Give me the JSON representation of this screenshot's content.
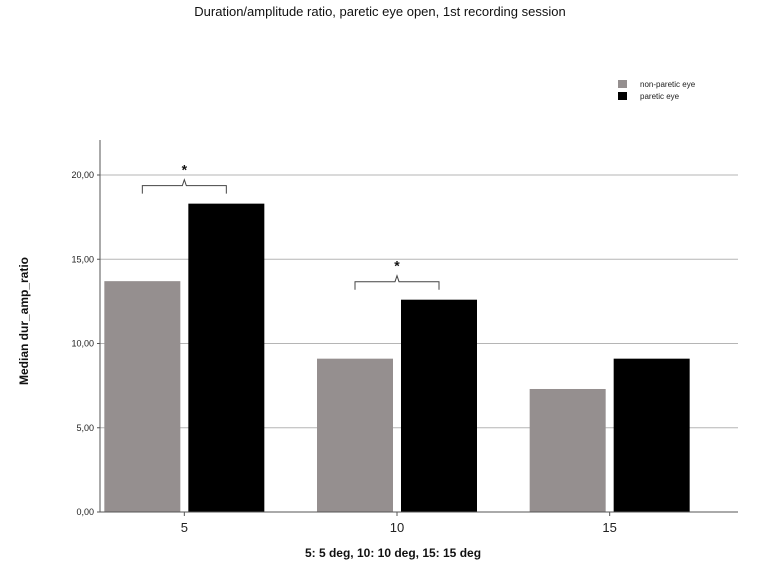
{
  "colors": {
    "non_paretic": "#958f8f",
    "paretic": "#000000",
    "grid": "#b5b5b5",
    "axis": "#555555"
  },
  "chart_data": {
    "type": "bar",
    "title": "Duration/amplitude  ratio, paretic eye open, 1st recording session",
    "xlabel": "5: 5 deg, 10: 10 deg, 15: 15 deg",
    "ylabel": "Median dur_amp_ratio",
    "categories": [
      "5",
      "10",
      "15"
    ],
    "series": [
      {
        "name": "non-paretic eye",
        "color": "#958f8f",
        "values": [
          13.7,
          9.1,
          7.3
        ]
      },
      {
        "name": "paretic eye",
        "color": "#000000",
        "values": [
          18.3,
          12.6,
          9.1
        ]
      }
    ],
    "ylim": [
      0,
      22
    ],
    "yticks": [
      0,
      5,
      10,
      15,
      20
    ],
    "ytick_labels": [
      "0,00",
      "5,00",
      "10,00",
      "15,00",
      "20,00"
    ],
    "grid": true,
    "legend_position": "top-right",
    "significance": [
      {
        "category_index": 0,
        "label": "*"
      },
      {
        "category_index": 1,
        "label": "*"
      }
    ]
  }
}
